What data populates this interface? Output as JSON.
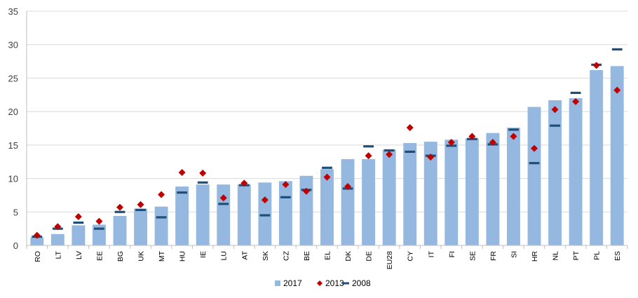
{
  "chart_data": {
    "type": "bar",
    "title": "",
    "xlabel": "",
    "ylabel": "",
    "ylim": [
      0,
      35
    ],
    "yticks": [
      0,
      5,
      10,
      15,
      20,
      25,
      30,
      35
    ],
    "grid": "horizontal",
    "legend_position": "bottom-center",
    "categories": [
      "RO",
      "LT",
      "LV",
      "EE",
      "BG",
      "UK",
      "MT",
      "HU",
      "IE",
      "LU",
      "AT",
      "SK",
      "CZ",
      "BE",
      "EL",
      "DK",
      "DE",
      "EU28",
      "CY",
      "IT",
      "FI",
      "SE",
      "FR",
      "SI",
      "HR",
      "NL",
      "PT",
      "PL",
      "ES"
    ],
    "series": [
      {
        "name": "2017",
        "mark": "bar",
        "color": "#95b8e0",
        "values": [
          1.2,
          1.7,
          3.0,
          3.1,
          4.4,
          5.5,
          5.8,
          8.8,
          9.1,
          9.1,
          9.1,
          9.4,
          9.6,
          10.4,
          11.4,
          12.9,
          12.9,
          14.3,
          15.3,
          15.5,
          15.8,
          16.0,
          16.8,
          17.6,
          20.7,
          21.7,
          22.0,
          26.2,
          26.8
        ]
      },
      {
        "name": "2013",
        "mark": "diamond",
        "color": "#c00000",
        "values": [
          1.5,
          2.8,
          4.3,
          3.6,
          5.7,
          6.1,
          7.6,
          10.9,
          10.8,
          7.1,
          9.3,
          6.8,
          9.1,
          8.1,
          10.2,
          8.8,
          13.4,
          13.6,
          17.6,
          13.2,
          15.4,
          16.3,
          15.4,
          16.3,
          14.5,
          20.3,
          21.5,
          26.9,
          23.2
        ]
      },
      {
        "name": "2008",
        "mark": "dash",
        "color": "#1f4e79",
        "values": [
          1.3,
          2.5,
          3.4,
          2.5,
          5.0,
          5.3,
          4.2,
          7.9,
          9.4,
          6.2,
          9.0,
          4.5,
          7.2,
          8.3,
          11.6,
          8.5,
          14.8,
          14.2,
          14.0,
          13.4,
          14.9,
          15.9,
          15.1,
          17.3,
          12.3,
          17.9,
          22.8,
          27.0,
          29.3
        ]
      }
    ]
  }
}
